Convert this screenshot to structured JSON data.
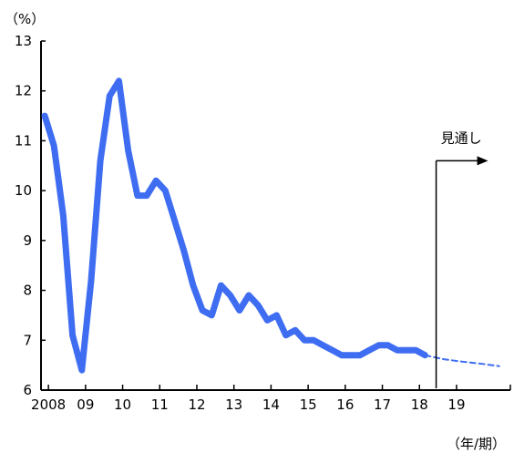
{
  "chart_data": {
    "type": "line",
    "y_unit_label": "（%）",
    "x_unit_label": "（年/期）",
    "ylim": [
      6,
      13
    ],
    "y_ticks": [
      "6",
      "7",
      "8",
      "9",
      "10",
      "11",
      "12",
      "13"
    ],
    "x_ticks": [
      {
        "label": "2008",
        "x": 2008.0
      },
      {
        "label": "09",
        "x": 2009.0
      },
      {
        "label": "10",
        "x": 2010.0
      },
      {
        "label": "11",
        "x": 2011.0
      },
      {
        "label": "12",
        "x": 2012.0
      },
      {
        "label": "13",
        "x": 2013.0
      },
      {
        "label": "14",
        "x": 2014.0
      },
      {
        "label": "15",
        "x": 2015.0
      },
      {
        "label": "16",
        "x": 2016.0
      },
      {
        "label": "17",
        "x": 2017.0
      },
      {
        "label": "18",
        "x": 2018.0
      },
      {
        "label": "19",
        "x": 2019.0
      }
    ],
    "xlim": [
      2007.8,
      2020.45
    ],
    "grid": false,
    "legend": "none",
    "series": [
      {
        "style": "solid",
        "color": "#3f6df2",
        "points": [
          [
            2007.9,
            11.5
          ],
          [
            2008.15,
            10.9
          ],
          [
            2008.4,
            9.5
          ],
          [
            2008.65,
            7.1
          ],
          [
            2008.9,
            6.4
          ],
          [
            2009.15,
            8.2
          ],
          [
            2009.4,
            10.6
          ],
          [
            2009.65,
            11.9
          ],
          [
            2009.9,
            12.2
          ],
          [
            2010.15,
            10.8
          ],
          [
            2010.4,
            9.9
          ],
          [
            2010.65,
            9.9
          ],
          [
            2010.9,
            10.2
          ],
          [
            2011.15,
            10.0
          ],
          [
            2011.4,
            9.4
          ],
          [
            2011.65,
            8.8
          ],
          [
            2011.9,
            8.1
          ],
          [
            2012.15,
            7.6
          ],
          [
            2012.4,
            7.5
          ],
          [
            2012.65,
            8.1
          ],
          [
            2012.9,
            7.9
          ],
          [
            2013.15,
            7.6
          ],
          [
            2013.4,
            7.9
          ],
          [
            2013.65,
            7.7
          ],
          [
            2013.9,
            7.4
          ],
          [
            2014.15,
            7.5
          ],
          [
            2014.4,
            7.1
          ],
          [
            2014.65,
            7.2
          ],
          [
            2014.9,
            7.0
          ],
          [
            2015.15,
            7.0
          ],
          [
            2015.4,
            6.9
          ],
          [
            2015.65,
            6.8
          ],
          [
            2015.9,
            6.7
          ],
          [
            2016.15,
            6.7
          ],
          [
            2016.4,
            6.7
          ],
          [
            2016.65,
            6.8
          ],
          [
            2016.9,
            6.9
          ],
          [
            2017.15,
            6.9
          ],
          [
            2017.4,
            6.8
          ],
          [
            2017.65,
            6.8
          ],
          [
            2017.9,
            6.8
          ],
          [
            2018.15,
            6.7
          ]
        ]
      },
      {
        "style": "dashed",
        "color": "#3f6df2",
        "points": [
          [
            2018.15,
            6.7
          ],
          [
            2018.65,
            6.62
          ],
          [
            2019.15,
            6.57
          ],
          [
            2019.65,
            6.53
          ],
          [
            2020.15,
            6.48
          ]
        ]
      }
    ],
    "annotation": {
      "label": "見通し",
      "x": 2018.45,
      "arrow_to_x": 2019.85,
      "arrow_y": 10.6,
      "direction": "right"
    }
  }
}
